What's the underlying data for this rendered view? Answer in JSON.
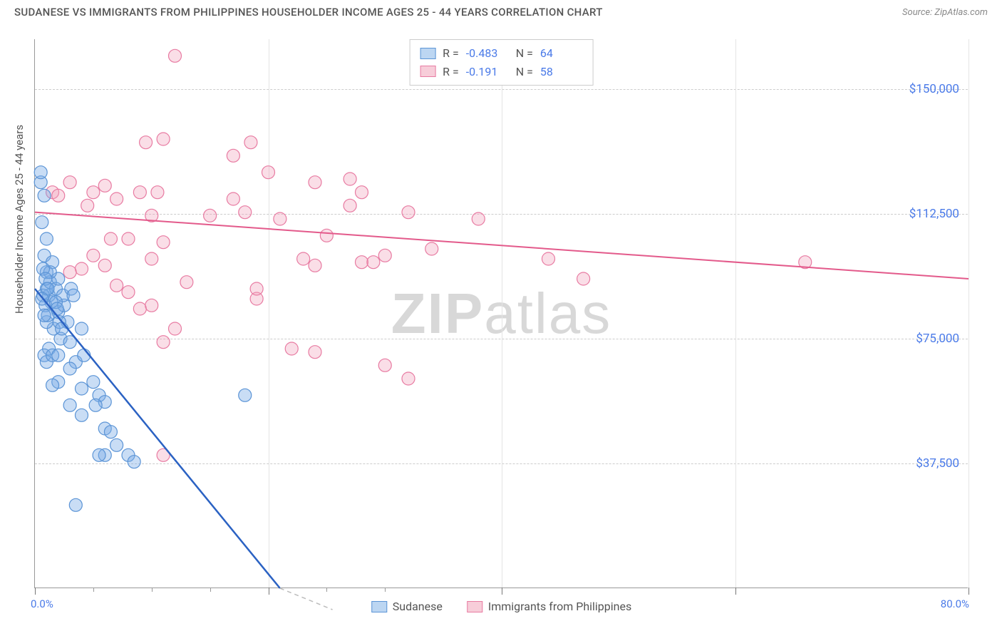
{
  "header": {
    "title": "SUDANESE VS IMMIGRANTS FROM PHILIPPINES HOUSEHOLDER INCOME AGES 25 - 44 YEARS CORRELATION CHART",
    "source": "Source: ZipAtlas.com"
  },
  "axes": {
    "ylabel": "Householder Income Ages 25 - 44 years",
    "x_min_label": "0.0%",
    "x_max_label": "80.0%",
    "xlim": [
      0,
      80
    ],
    "ylim": [
      0,
      165000
    ],
    "yticks": [
      {
        "value": 37500,
        "label": "$37,500"
      },
      {
        "value": 75000,
        "label": "$75,000"
      },
      {
        "value": 112500,
        "label": "$112,500"
      },
      {
        "value": 150000,
        "label": "$150,000"
      }
    ],
    "xticks_major": [
      0,
      20,
      40,
      60,
      80
    ],
    "xticks_minor": [
      5,
      10,
      15,
      25,
      30
    ]
  },
  "legend_top": {
    "series": [
      {
        "swatch_fill": "#bcd6f2",
        "swatch_border": "#5b94d6",
        "r_label": "R =",
        "r_value": "-0.483",
        "n_label": "N =",
        "n_value": "64"
      },
      {
        "swatch_fill": "#f7cdd9",
        "swatch_border": "#e87ba2",
        "r_label": "R =",
        "r_value": "-0.191",
        "n_label": "N =",
        "n_value": "58"
      }
    ]
  },
  "legend_bottom": {
    "items": [
      {
        "swatch_fill": "#bcd6f2",
        "swatch_border": "#5b94d6",
        "label": "Sudanese"
      },
      {
        "swatch_fill": "#f7cdd9",
        "swatch_border": "#e87ba2",
        "label": "Immigrants from Philippines"
      }
    ]
  },
  "watermark": {
    "part1": "ZIP",
    "part2": "atlas"
  },
  "chart": {
    "type": "scatter",
    "marker_radius": 9,
    "background_color": "#ffffff",
    "grid_color": "#cccccc",
    "series_blue": {
      "color_fill": "rgba(120,170,230,0.4)",
      "color_stroke": "#5b94d6",
      "trend": {
        "x1": 0,
        "y1": 90000,
        "x2": 21,
        "y2": 0,
        "color": "#2b62c3",
        "width": 2.5
      },
      "trend_extrapolate": {
        "x1": 21,
        "y1": 0,
        "x2": 25.5,
        "y2": -18000
      },
      "points": [
        [
          0.5,
          122000
        ],
        [
          0.8,
          118000
        ],
        [
          1.0,
          95000
        ],
        [
          1.0,
          90000
        ],
        [
          1.2,
          88000
        ],
        [
          1.3,
          92000
        ],
        [
          1.0,
          105000
        ],
        [
          0.8,
          100000
        ],
        [
          1.5,
          98000
        ],
        [
          1.4,
          86000
        ],
        [
          1.8,
          90000
        ],
        [
          1.6,
          78000
        ],
        [
          2.0,
          83000
        ],
        [
          2.2,
          75000
        ],
        [
          2.0,
          93000
        ],
        [
          2.5,
          85000
        ],
        [
          2.4,
          88000
        ],
        [
          1.0,
          80000
        ],
        [
          1.2,
          72000
        ],
        [
          2.8,
          80000
        ],
        [
          3.0,
          74000
        ],
        [
          3.1,
          90000
        ],
        [
          3.3,
          88000
        ],
        [
          0.8,
          70000
        ],
        [
          1.0,
          68000
        ],
        [
          1.5,
          70000
        ],
        [
          2.0,
          70000
        ],
        [
          3.5,
          68000
        ],
        [
          3.0,
          66000
        ],
        [
          4.2,
          70000
        ],
        [
          4.0,
          78000
        ],
        [
          5.0,
          62000
        ],
        [
          5.5,
          58000
        ],
        [
          6.0,
          56000
        ],
        [
          5.2,
          55000
        ],
        [
          3.0,
          55000
        ],
        [
          2.0,
          62000
        ],
        [
          1.5,
          61000
        ],
        [
          4.0,
          52000
        ],
        [
          6.0,
          48000
        ],
        [
          6.5,
          47000
        ],
        [
          8.0,
          40000
        ],
        [
          8.5,
          38000
        ],
        [
          4.0,
          60000
        ],
        [
          0.7,
          88000
        ],
        [
          0.9,
          85000
        ],
        [
          1.1,
          82000
        ],
        [
          1.3,
          95000
        ],
        [
          0.6,
          110000
        ],
        [
          0.7,
          96000
        ],
        [
          0.9,
          93000
        ],
        [
          1.1,
          90000
        ],
        [
          1.8,
          86000
        ],
        [
          1.9,
          84000
        ],
        [
          2.1,
          80000
        ],
        [
          2.3,
          78000
        ],
        [
          0.5,
          125000
        ],
        [
          3.5,
          25000
        ],
        [
          6.0,
          40000
        ],
        [
          5.5,
          40000
        ],
        [
          7.0,
          43000
        ],
        [
          18.0,
          58000
        ],
        [
          0.6,
          87000
        ],
        [
          0.8,
          82000
        ]
      ]
    },
    "series_pink": {
      "color_fill": "rgba(240,160,185,0.35)",
      "color_stroke": "#e87ba2",
      "trend": {
        "x1": 0,
        "y1": 113000,
        "x2": 80,
        "y2": 93000,
        "color": "#e35a8b",
        "width": 2
      },
      "points": [
        [
          1.5,
          119000
        ],
        [
          2.0,
          118000
        ],
        [
          3.0,
          122000
        ],
        [
          5.0,
          119000
        ],
        [
          6.0,
          121000
        ],
        [
          7.0,
          117000
        ],
        [
          9.0,
          119000
        ],
        [
          8.0,
          105000
        ],
        [
          10.0,
          112000
        ],
        [
          10.5,
          119000
        ],
        [
          28.0,
          119000
        ],
        [
          11.0,
          104000
        ],
        [
          10.0,
          99000
        ],
        [
          12.0,
          160000
        ],
        [
          9.5,
          134000
        ],
        [
          11.0,
          135000
        ],
        [
          17.0,
          130000
        ],
        [
          18.5,
          134000
        ],
        [
          15.0,
          112000
        ],
        [
          17.0,
          117000
        ],
        [
          18.0,
          113000
        ],
        [
          20.0,
          125000
        ],
        [
          21.0,
          111000
        ],
        [
          24.0,
          122000
        ],
        [
          27.0,
          123000
        ],
        [
          23.0,
          99000
        ],
        [
          24.0,
          97000
        ],
        [
          25.0,
          106000
        ],
        [
          28.0,
          98000
        ],
        [
          29.0,
          98000
        ],
        [
          32.0,
          113000
        ],
        [
          30.0,
          100000
        ],
        [
          38.0,
          111000
        ],
        [
          5.0,
          100000
        ],
        [
          6.0,
          97000
        ],
        [
          4.0,
          96000
        ],
        [
          3.0,
          95000
        ],
        [
          7.0,
          91000
        ],
        [
          8.0,
          89000
        ],
        [
          9.0,
          84000
        ],
        [
          10.0,
          85000
        ],
        [
          12.0,
          78000
        ],
        [
          11.0,
          74000
        ],
        [
          13.0,
          92000
        ],
        [
          22.0,
          72000
        ],
        [
          24.0,
          71000
        ],
        [
          30.0,
          67000
        ],
        [
          32.0,
          63000
        ],
        [
          44.0,
          99000
        ],
        [
          47.0,
          93000
        ],
        [
          66.0,
          98000
        ],
        [
          11.0,
          40000
        ],
        [
          19.0,
          87000
        ],
        [
          19.0,
          90000
        ],
        [
          4.5,
          115000
        ],
        [
          6.5,
          105000
        ],
        [
          34.0,
          102000
        ],
        [
          27.0,
          115000
        ]
      ]
    }
  }
}
